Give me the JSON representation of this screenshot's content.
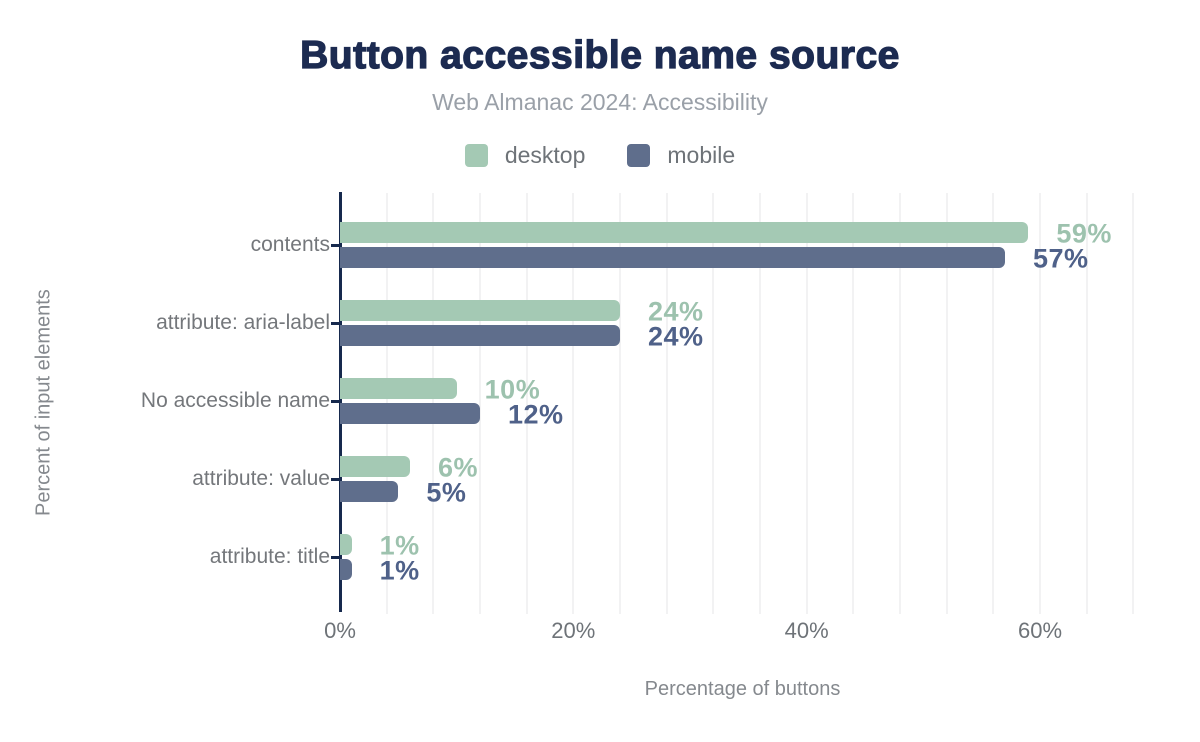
{
  "page": {
    "background": "#ffffff"
  },
  "chart_data": {
    "type": "bar",
    "orientation": "horizontal",
    "title": "Button accessible name source",
    "subtitle": "Web Almanac 2024: Accessibility",
    "xlabel": "Percentage of buttons",
    "ylabel": "Percent of input elements",
    "categories": [
      "contents",
      "attribute: aria-label",
      "No accessible name",
      "attribute: value",
      "attribute: title"
    ],
    "series": [
      {
        "name": "desktop",
        "color": "#a4c9b4",
        "label_color": "#9dc2ae",
        "values": [
          59,
          24,
          10,
          6,
          1
        ]
      },
      {
        "name": "mobile",
        "color": "#5f6e8c",
        "label_color": "#4f6189",
        "values": [
          57,
          24,
          12,
          5,
          1
        ]
      }
    ],
    "value_suffix": "%",
    "x_ticks": [
      0,
      20,
      40,
      60
    ],
    "x_tick_labels": [
      "0%",
      "20%",
      "40%",
      "60%"
    ],
    "xlim": [
      0,
      69
    ],
    "minor_grid_step": 4,
    "grid": true,
    "legend_position": "top",
    "colors": {
      "title": "#1c2b51",
      "subtitle": "#9aa0a8",
      "legend_text": "#6e7378",
      "category_label": "#74777b",
      "tick_label": "#6e7378",
      "axis_title": "#85898e",
      "axis_line": "#16294d",
      "gridline": "#f2f2f3",
      "background": "#ffffff"
    }
  }
}
